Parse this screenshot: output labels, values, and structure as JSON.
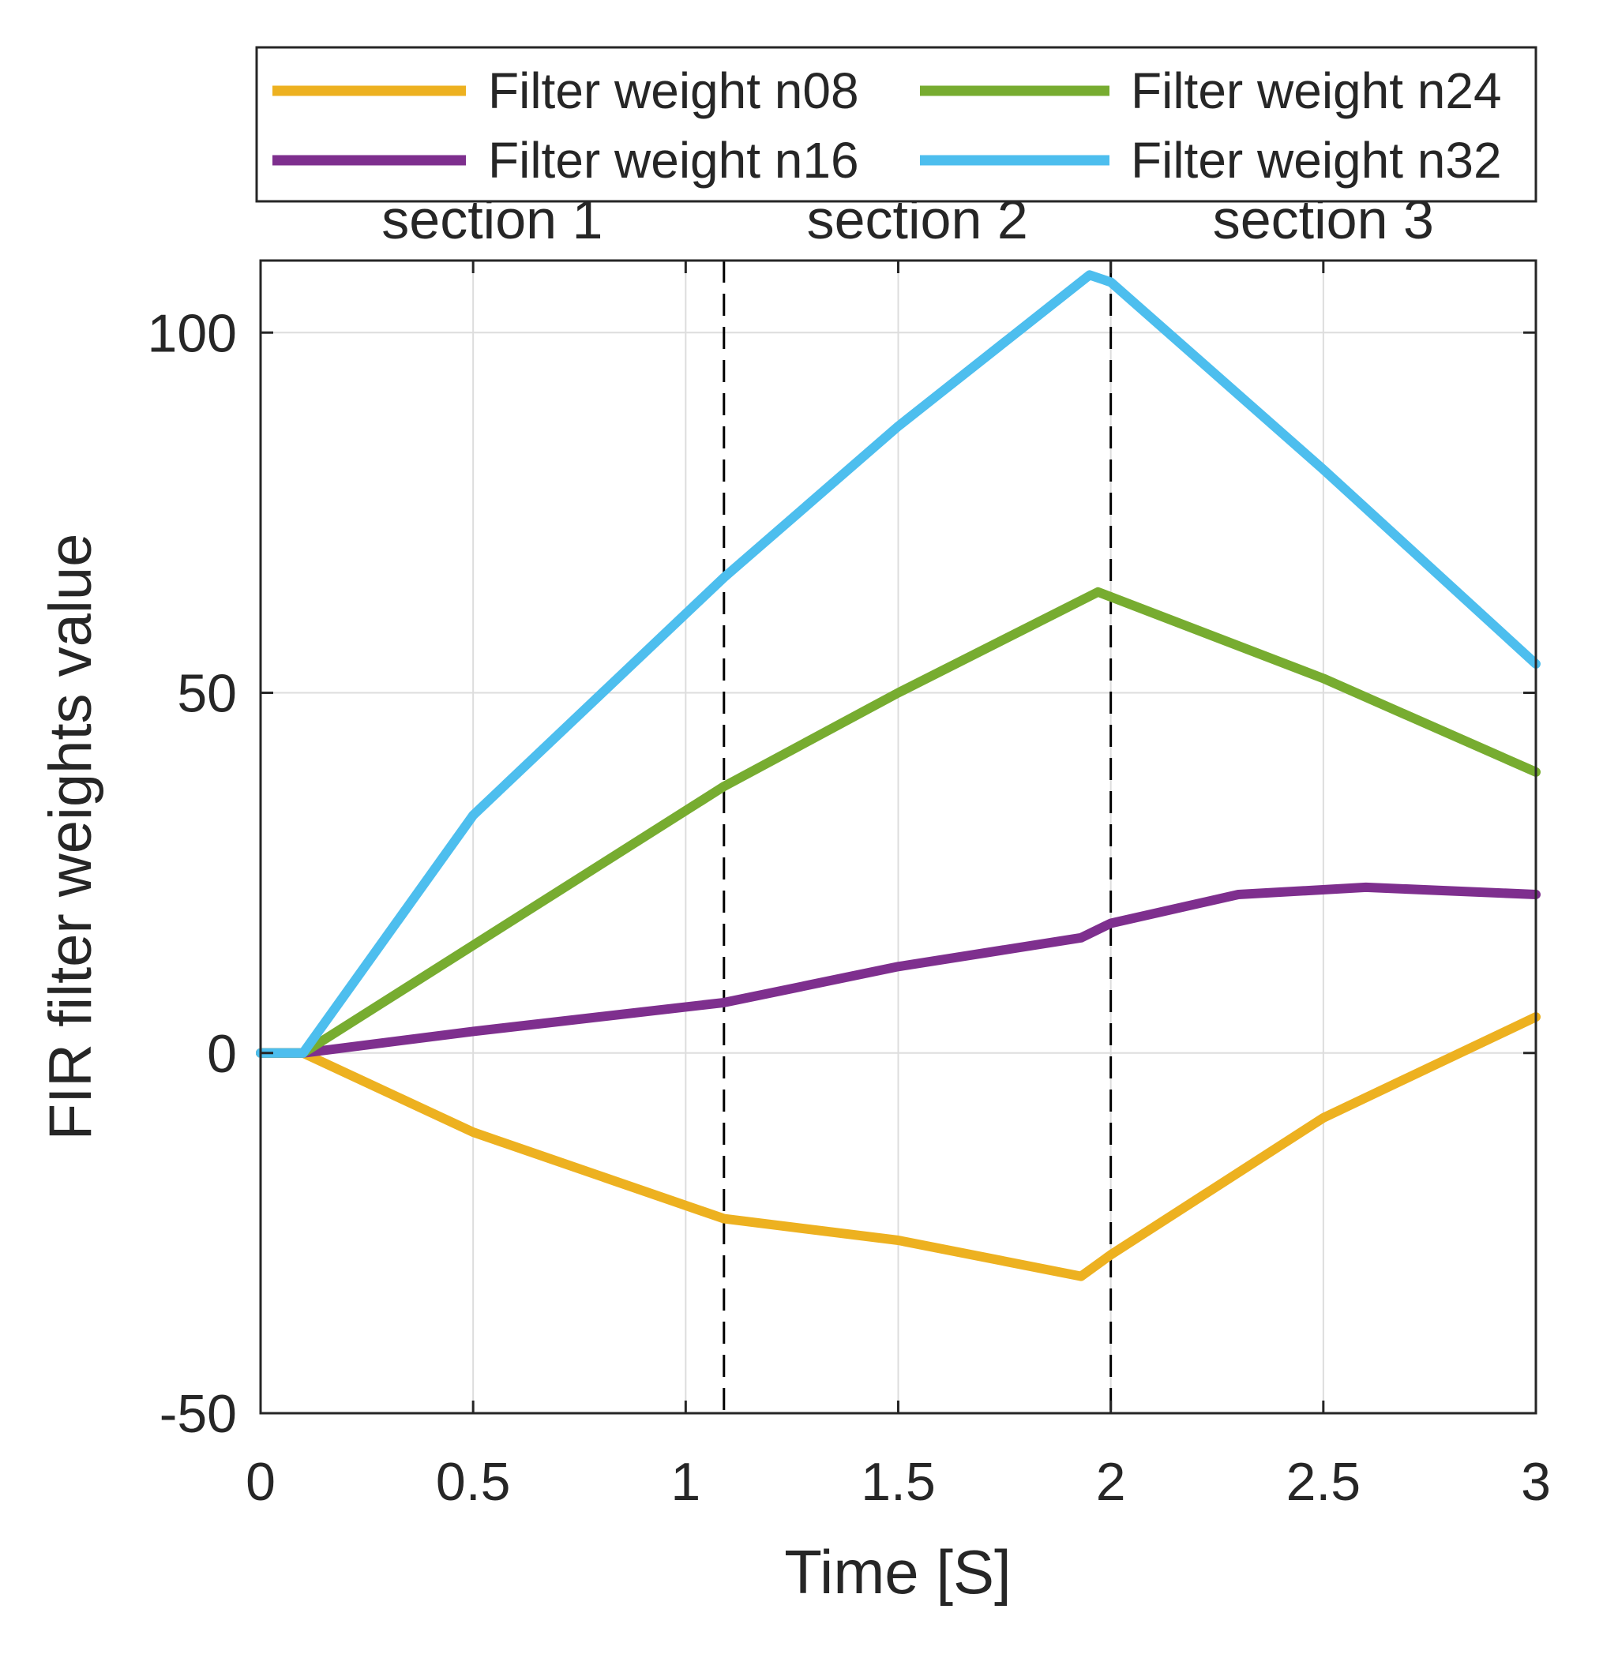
{
  "colors": {
    "n08": "#EDB120",
    "n16": "#7E2F8E",
    "n24": "#77AC30",
    "n32": "#4DBEEE",
    "grid": "#dddddd",
    "axis": "#262626",
    "background": "#ffffff"
  },
  "chart_data": {
    "type": "line",
    "title": "",
    "xlabel": "Time [S]",
    "ylabel": "FIR filter weights value",
    "xlim": [
      0,
      3
    ],
    "ylim": [
      -50,
      110
    ],
    "xticks": [
      0,
      0.5,
      1,
      1.5,
      2,
      2.5,
      3
    ],
    "yticks": [
      -50,
      0,
      50,
      100
    ],
    "xtick_labels": [
      "0",
      "0.5",
      "1",
      "1.5",
      "2",
      "2.5",
      "3"
    ],
    "ytick_labels": [
      "-50",
      "0",
      "50",
      "100"
    ],
    "grid": true,
    "legend_position": "top (outside, two columns)",
    "section_lines": [
      1.09,
      2.0
    ],
    "sections": [
      {
        "label": "section 1",
        "x_start": 0,
        "x_end": 1.09
      },
      {
        "label": "section 2",
        "x_start": 1.09,
        "x_end": 2.0
      },
      {
        "label": "section 3",
        "x_start": 2.0,
        "x_end": 3
      }
    ],
    "series": [
      {
        "key": "n08",
        "name": "Filter weight n08",
        "color_key": "n08",
        "x": [
          0,
          0.1,
          0.5,
          1.09,
          1.5,
          1.93,
          2.0,
          2.5,
          3.0
        ],
        "y": [
          0,
          0,
          -11,
          -23,
          -26,
          -31,
          -28,
          -9,
          5
        ]
      },
      {
        "key": "n16",
        "name": "Filter weight n16",
        "color_key": "n16",
        "x": [
          0,
          0.1,
          0.5,
          1.09,
          1.5,
          1.93,
          2.0,
          2.3,
          2.6,
          3.0
        ],
        "y": [
          0,
          0,
          3,
          7,
          12,
          16,
          18,
          22,
          23,
          22
        ]
      },
      {
        "key": "n24",
        "name": "Filter weight n24",
        "color_key": "n24",
        "x": [
          0,
          0.1,
          1.09,
          1.5,
          1.97,
          2.5,
          3.0
        ],
        "y": [
          0,
          0,
          37,
          50,
          64,
          52,
          39
        ]
      },
      {
        "key": "n32",
        "name": "Filter weight n32",
        "color_key": "n32",
        "x": [
          0,
          0.1,
          0.5,
          1.09,
          1.5,
          1.95,
          2.0,
          2.5,
          3.0
        ],
        "y": [
          0,
          0,
          33,
          66,
          87,
          108,
          107,
          81,
          54
        ]
      }
    ]
  }
}
